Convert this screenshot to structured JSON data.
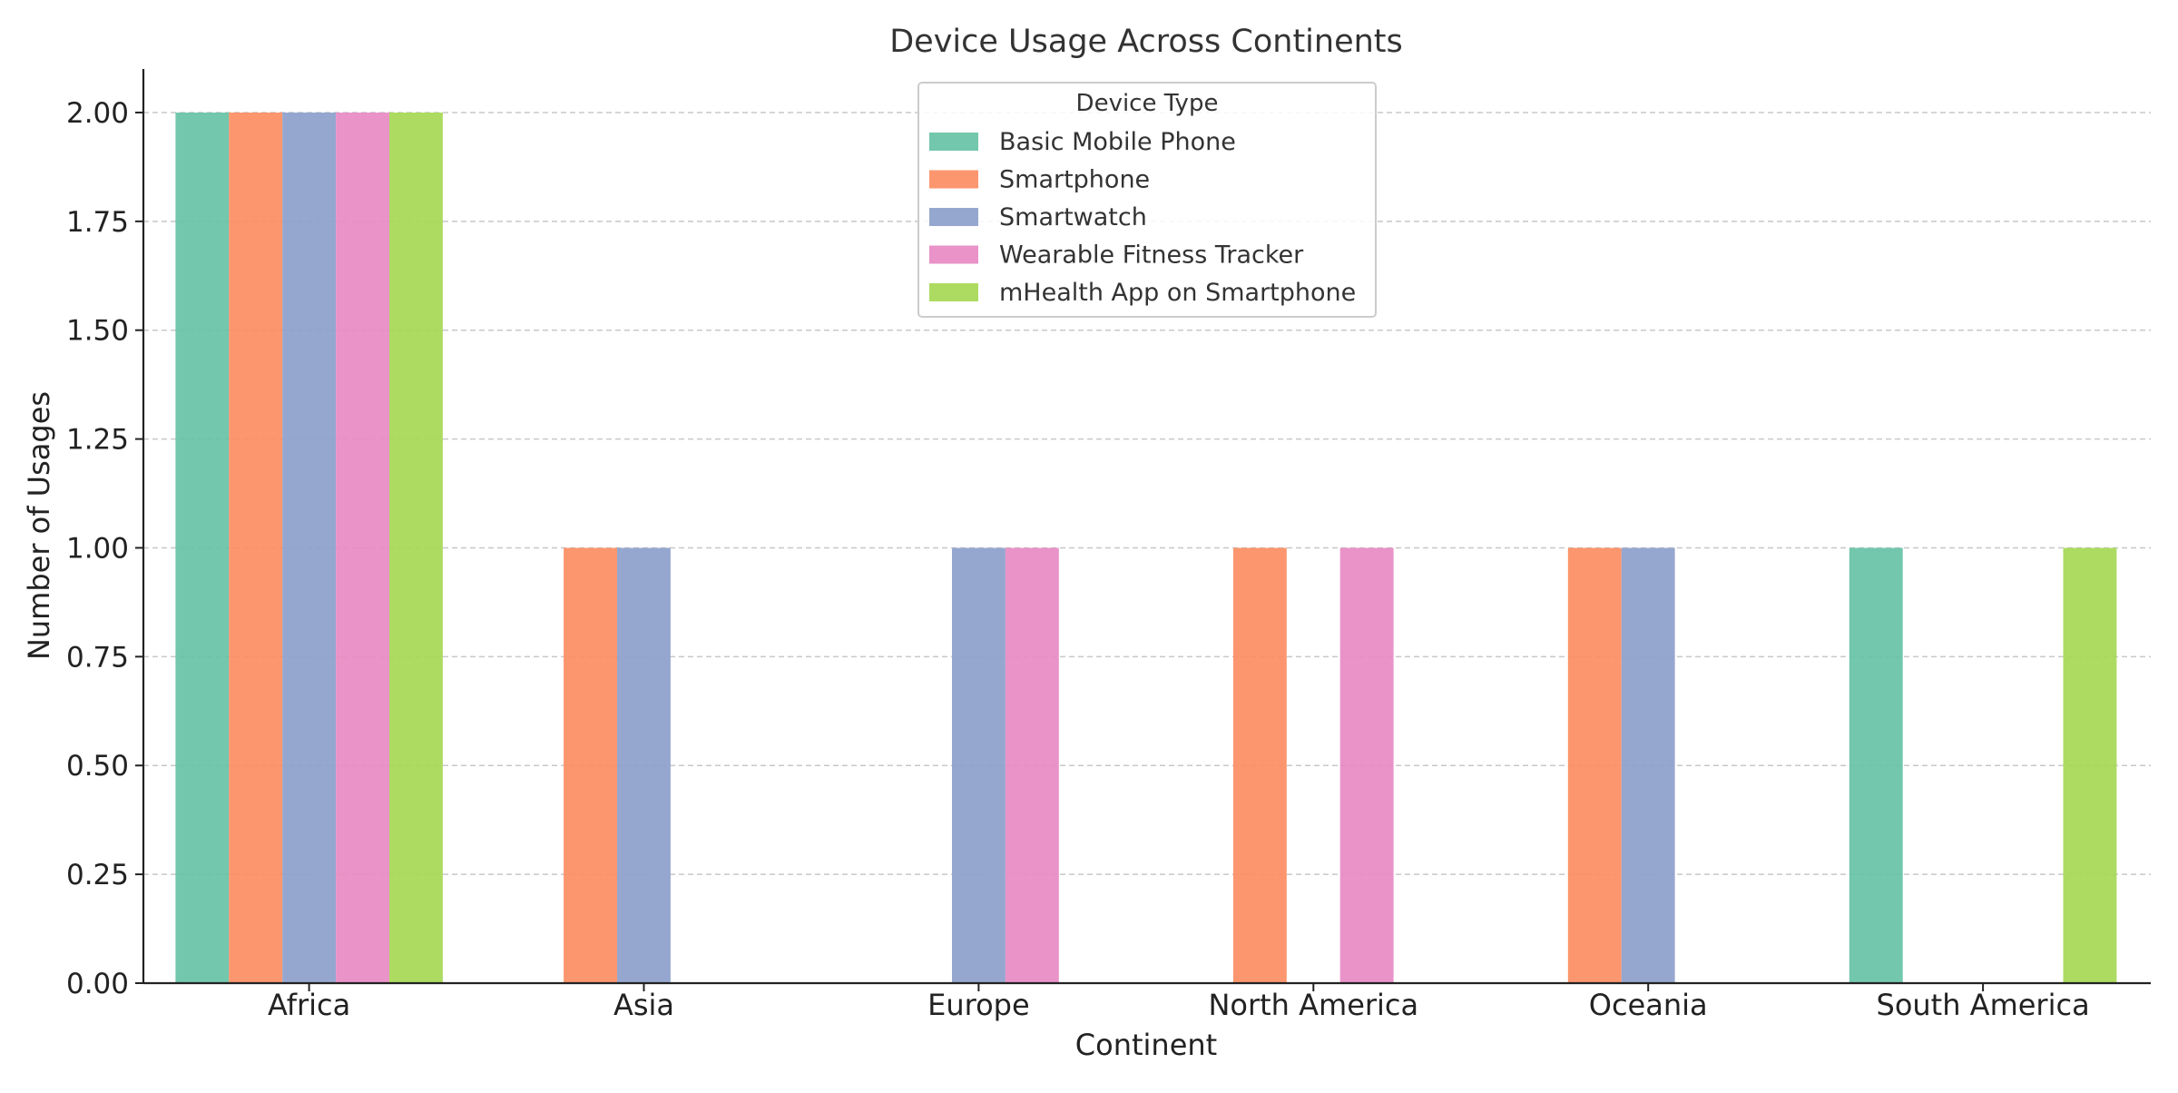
{
  "chart_data": {
    "type": "bar",
    "title": "Device Usage Across Continents",
    "xlabel": "Continent",
    "ylabel": "Number of Usages",
    "categories": [
      "Africa",
      "Asia",
      "Europe",
      "North America",
      "Oceania",
      "South America"
    ],
    "series": [
      {
        "name": "Basic Mobile Phone",
        "color": "#66c2a5",
        "values": [
          2,
          0,
          0,
          0,
          0,
          1
        ]
      },
      {
        "name": "Smartphone",
        "color": "#fc8d62",
        "values": [
          2,
          1,
          0,
          1,
          1,
          0
        ]
      },
      {
        "name": "Smartwatch",
        "color": "#8da0cb",
        "values": [
          2,
          1,
          1,
          0,
          1,
          0
        ]
      },
      {
        "name": "Wearable Fitness Tracker",
        "color": "#e78ac3",
        "values": [
          2,
          0,
          1,
          1,
          0,
          0
        ]
      },
      {
        "name": "mHealth App on Smartphone",
        "color": "#a6d854",
        "values": [
          2,
          0,
          0,
          0,
          0,
          1
        ]
      }
    ],
    "ylim": [
      0,
      2.1
    ],
    "yticks": [
      "0.00",
      "0.25",
      "0.50",
      "0.75",
      "1.00",
      "1.25",
      "1.50",
      "1.75",
      "2.00"
    ],
    "grid": "y-dashed",
    "legend": {
      "title": "Device Type",
      "position": "top-center"
    }
  }
}
